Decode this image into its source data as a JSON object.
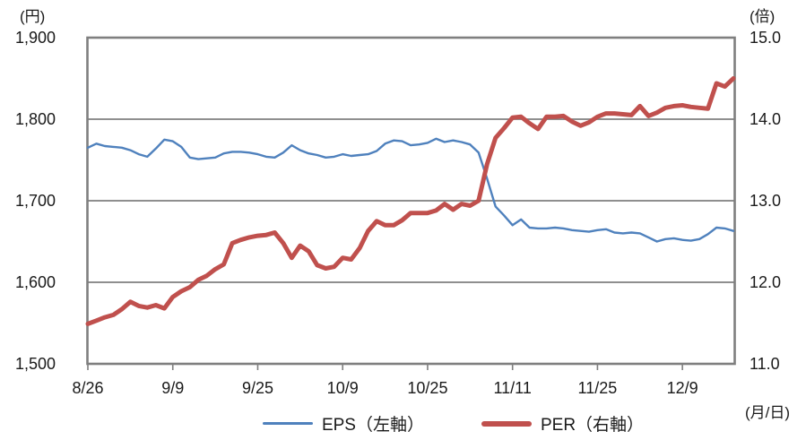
{
  "chart_data": {
    "type": "line",
    "title": "",
    "x_axis": {
      "unit": "(月/日)",
      "tick_labels": [
        "8/26",
        "9/9",
        "9/25",
        "10/9",
        "10/25",
        "11/11",
        "11/25",
        "12/9"
      ],
      "tick_positions": [
        0,
        10,
        20,
        30,
        40,
        50,
        60,
        70
      ],
      "n_points": 77
    },
    "left_axis": {
      "unit": "(円)",
      "tick_labels": [
        "1,500",
        "1,600",
        "1,700",
        "1,800",
        "1,900"
      ],
      "min": 1500,
      "max": 1900
    },
    "right_axis": {
      "unit": "(倍)",
      "tick_labels": [
        "11.0",
        "12.0",
        "13.0",
        "14.0",
        "15.0"
      ],
      "min": 11.0,
      "max": 15.0
    },
    "grid": "horizontal-solid-gray",
    "legend_position": "bottom",
    "colors": {
      "eps_line": "#4F81BD",
      "per_line": "#C0504D",
      "grid": "#7F7F7F",
      "text": "#1a1a1a"
    },
    "series": [
      {
        "name": "EPS（左軸）",
        "axis": "left",
        "color": "#4F81BD",
        "stroke_width": 2.4,
        "values": [
          1765,
          1770,
          1767,
          1766,
          1765,
          1762,
          1757,
          1754,
          1764,
          1775,
          1773,
          1766,
          1753,
          1751,
          1752,
          1753,
          1758,
          1760,
          1760,
          1759,
          1757,
          1754,
          1753,
          1759,
          1768,
          1762,
          1758,
          1756,
          1753,
          1754,
          1757,
          1755,
          1756,
          1757,
          1761,
          1770,
          1774,
          1773,
          1768,
          1769,
          1771,
          1776,
          1772,
          1774,
          1772,
          1769,
          1759,
          1727,
          1693,
          1682,
          1670,
          1677,
          1667,
          1666,
          1666,
          1667,
          1666,
          1664,
          1663,
          1662,
          1664,
          1665,
          1661,
          1660,
          1661,
          1660,
          1655,
          1650,
          1653,
          1654,
          1652,
          1651,
          1653,
          1659,
          1667,
          1666,
          1663
        ]
      },
      {
        "name": "PER（右軸）",
        "axis": "right",
        "color": "#C0504D",
        "stroke_width": 5,
        "values": [
          11.49,
          11.53,
          11.57,
          11.6,
          11.67,
          11.76,
          11.71,
          11.69,
          11.72,
          11.68,
          11.82,
          11.89,
          11.94,
          12.03,
          12.08,
          12.16,
          12.22,
          12.48,
          12.52,
          12.55,
          12.57,
          12.58,
          12.61,
          12.48,
          12.3,
          12.45,
          12.38,
          12.21,
          12.17,
          12.19,
          12.3,
          12.28,
          12.42,
          12.63,
          12.75,
          12.7,
          12.7,
          12.76,
          12.85,
          12.85,
          12.85,
          12.88,
          12.96,
          12.89,
          12.96,
          12.94,
          13.0,
          13.45,
          13.77,
          13.89,
          14.02,
          14.03,
          13.95,
          13.88,
          14.03,
          14.03,
          14.04,
          13.97,
          13.92,
          13.96,
          14.03,
          14.07,
          14.07,
          14.06,
          14.05,
          14.16,
          14.04,
          14.08,
          14.14,
          14.16,
          14.17,
          14.15,
          14.14,
          14.13,
          14.44,
          14.4,
          14.5
        ]
      }
    ]
  },
  "legend": {
    "eps_label": "EPS（左軸）",
    "per_label": "PER（右軸）"
  }
}
